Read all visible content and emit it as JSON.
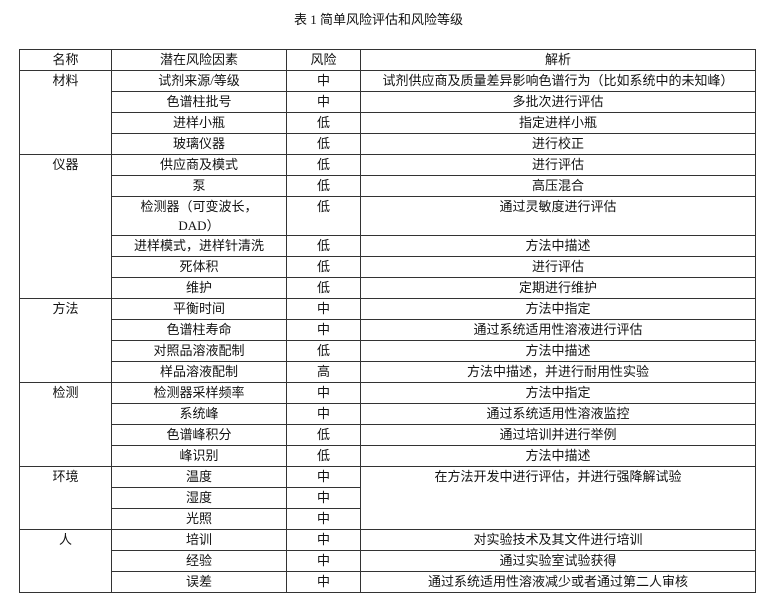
{
  "caption": "表 1  简单风险评估和风险等级",
  "headers": [
    "名称",
    "潜在风险因素",
    "风险",
    "解析"
  ],
  "groups": [
    {
      "name": "材料",
      "rows": [
        {
          "factor": "试剂来源/等级",
          "risk": "中",
          "analysis": "试剂供应商及质量差异影响色谱行为（比如系统中的未知峰）"
        },
        {
          "factor": "色谱柱批号",
          "risk": "中",
          "analysis": "多批次进行评估"
        },
        {
          "factor": "进样小瓶",
          "risk": "低",
          "analysis": "指定进样小瓶"
        },
        {
          "factor": "玻璃仪器",
          "risk": "低",
          "analysis": "进行校正"
        }
      ]
    },
    {
      "name": "仪器",
      "rows": [
        {
          "factor": "供应商及模式",
          "risk": "低",
          "analysis": "进行评估"
        },
        {
          "factor": "泵",
          "risk": "低",
          "analysis": "高压混合"
        },
        {
          "factor": "检测器（可变波长，DAD）",
          "risk": "低",
          "analysis": "通过灵敏度进行评估"
        },
        {
          "factor": "进样模式，进样针清洗",
          "risk": "低",
          "analysis": "方法中描述"
        },
        {
          "factor": "死体积",
          "risk": "低",
          "analysis": "进行评估"
        },
        {
          "factor": "维护",
          "risk": "低",
          "analysis": "定期进行维护"
        }
      ]
    },
    {
      "name": "方法",
      "rows": [
        {
          "factor": "平衡时间",
          "risk": "中",
          "analysis": "方法中指定"
        },
        {
          "factor": "色谱柱寿命",
          "risk": "中",
          "analysis": "通过系统适用性溶液进行评估"
        },
        {
          "factor": "对照品溶液配制",
          "risk": "低",
          "analysis": "方法中描述"
        },
        {
          "factor": "样品溶液配制",
          "risk": "高",
          "analysis": "方法中描述，并进行耐用性实验"
        }
      ]
    },
    {
      "name": "检测",
      "rows": [
        {
          "factor": "检测器采样频率",
          "risk": "中",
          "analysis": "方法中指定"
        },
        {
          "factor": "系统峰",
          "risk": "中",
          "analysis": "通过系统适用性溶液监控"
        },
        {
          "factor": "色谱峰积分",
          "risk": "低",
          "analysis": "通过培训并进行举例"
        },
        {
          "factor": "峰识别",
          "risk": "低",
          "analysis": "方法中描述"
        }
      ]
    },
    {
      "name": "环境",
      "shared_analysis": "在方法开发中进行评估，并进行强降解试验",
      "rows": [
        {
          "factor": "温度",
          "risk": "中"
        },
        {
          "factor": "湿度",
          "risk": "中"
        },
        {
          "factor": "光照",
          "risk": "中"
        }
      ]
    },
    {
      "name": "人",
      "rows": [
        {
          "factor": "培训",
          "risk": "中",
          "analysis": "对实验技术及其文件进行培训"
        },
        {
          "factor": "经验",
          "risk": "中",
          "analysis": "通过实验室试验获得"
        },
        {
          "factor": "误差",
          "risk": "中",
          "analysis": "通过系统适用性溶液减少或者通过第二人审核"
        }
      ]
    }
  ]
}
